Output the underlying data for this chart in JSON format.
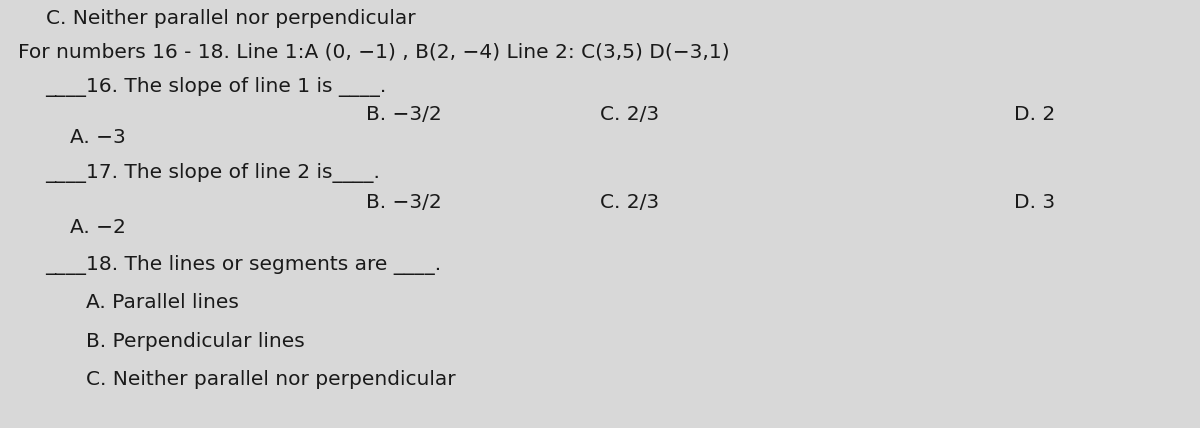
{
  "bg_color": "#d8d8d8",
  "title_line": "C. Neither parallel nor perpendicular",
  "intro_line": "For numbers 16 - 18. Line 1:A (0, −1) , B(2, −4) Line 2: C(3,5) D(−3,1)",
  "q16_label": "____16. The slope of line 1 is ____.",
  "q16_A": "A. −3",
  "q16_B": "B. −3/2",
  "q16_C": "C. 2/3",
  "q16_D": "D. 2",
  "q17_label": "____17. The slope of line 2 is____.",
  "q17_A": "A. −2",
  "q17_B": "B. −3/2",
  "q17_C": "C. 2/3",
  "q17_D": "D. 3",
  "q18_label": "____18. The lines or segments are ____.",
  "q18_A": "A. Parallel lines",
  "q18_B": "B. Perpendicular lines",
  "q18_C": "C. Neither parallel nor perpendicular",
  "text_color": "#1a1a1a",
  "font_size": 14.5,
  "col_B": 0.305,
  "col_C": 0.5,
  "col_D": 0.845
}
